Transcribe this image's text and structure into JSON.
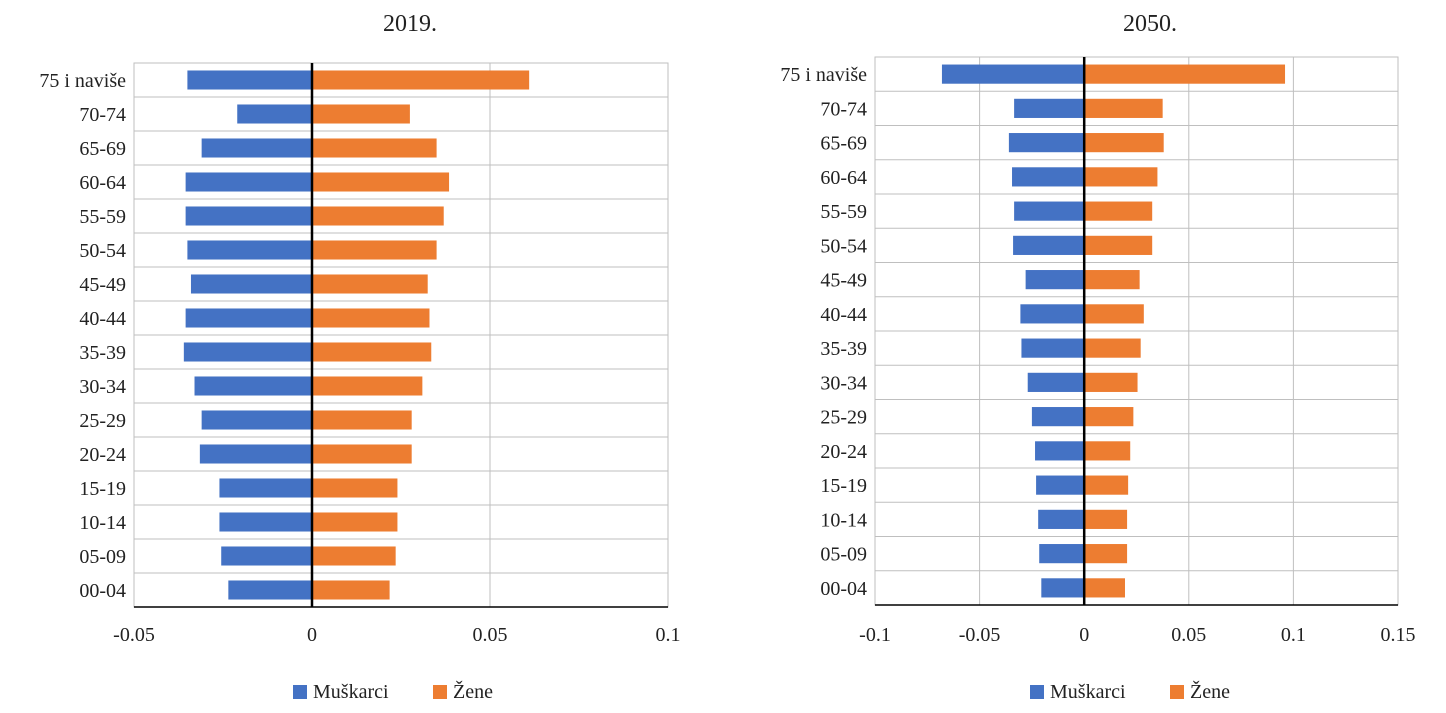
{
  "colors": {
    "men": "#4472C4",
    "women": "#ED7D31",
    "grid": "#BFBFBF",
    "axis": "#000000"
  },
  "chart_data": [
    {
      "type": "bar",
      "orientation": "horizontal",
      "title": "2019.",
      "categories": [
        "75 i naviše",
        "70-74",
        "65-69",
        "60-64",
        "55-59",
        "50-54",
        "45-49",
        "40-44",
        "35-39",
        "30-34",
        "25-29",
        "20-24",
        "15-19",
        "10-14",
        "05-09",
        "00-04"
      ],
      "series": [
        {
          "name": "Muškarci",
          "values": [
            -0.035,
            -0.021,
            -0.031,
            -0.0355,
            -0.0355,
            -0.035,
            -0.034,
            -0.0355,
            -0.036,
            -0.033,
            -0.031,
            -0.0315,
            -0.026,
            -0.026,
            -0.0255,
            -0.0235
          ]
        },
        {
          "name": "Žene",
          "values": [
            0.061,
            0.0275,
            0.035,
            0.0385,
            0.037,
            0.035,
            0.0325,
            0.033,
            0.0335,
            0.031,
            0.028,
            0.028,
            0.024,
            0.024,
            0.0235,
            0.0218
          ]
        }
      ],
      "xlim": [
        -0.05,
        0.1
      ],
      "xticks": [
        -0.05,
        0,
        0.05,
        0.1
      ],
      "xtick_labels": [
        "-0.05",
        "0",
        "0.05",
        "0.1"
      ],
      "grid": true,
      "legend": "bottom"
    },
    {
      "type": "bar",
      "orientation": "horizontal",
      "title": "2050.",
      "categories": [
        "75 i naviše",
        "70-74",
        "65-69",
        "60-64",
        "55-59",
        "50-54",
        "45-49",
        "40-44",
        "35-39",
        "30-34",
        "25-29",
        "20-24",
        "15-19",
        "10-14",
        "05-09",
        "00-04"
      ],
      "series": [
        {
          "name": "Muškarci",
          "values": [
            -0.068,
            -0.0335,
            -0.036,
            -0.0345,
            -0.0335,
            -0.034,
            -0.028,
            -0.0305,
            -0.03,
            -0.027,
            -0.025,
            -0.0235,
            -0.023,
            -0.022,
            -0.0215,
            -0.0205
          ]
        },
        {
          "name": "Žene",
          "values": [
            0.096,
            0.0375,
            0.038,
            0.035,
            0.0325,
            0.0325,
            0.0265,
            0.0285,
            0.027,
            0.0255,
            0.0235,
            0.022,
            0.021,
            0.0205,
            0.0205,
            0.0195
          ]
        }
      ],
      "xlim": [
        -0.1,
        0.15
      ],
      "xticks": [
        -0.1,
        -0.05,
        0,
        0.05,
        0.1,
        0.15
      ],
      "xtick_labels": [
        "-0.1",
        "-0.05",
        "0",
        "0.05",
        "0.1",
        "0.15"
      ],
      "grid": true,
      "legend": "bottom"
    }
  ]
}
